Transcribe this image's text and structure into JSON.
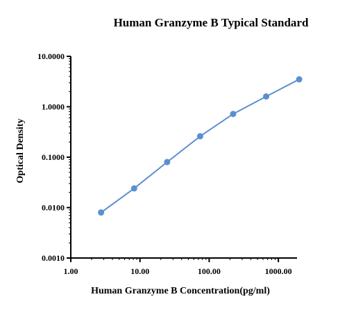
{
  "chart_data": {
    "type": "line",
    "title": "Human Granzyme B Typical Standard",
    "xlabel": "Human Granzyme B Concentration(pg/ml)",
    "ylabel": "Optical Density",
    "xscale": "log",
    "yscale": "log",
    "xlim": [
      1,
      2000
    ],
    "ylim": [
      0.001,
      10
    ],
    "x_ticks": [
      1,
      10,
      100,
      1000
    ],
    "x_tick_labels": [
      "1.00",
      "10.00",
      "100.00",
      "1000.00"
    ],
    "y_ticks": [
      0.001,
      0.01,
      0.1,
      1,
      10
    ],
    "y_tick_labels": [
      "0.0010",
      "0.0100",
      "0.1000",
      "1.0000",
      "10.0000"
    ],
    "grid": false,
    "legend": "none",
    "series": [
      {
        "color": "#5b8fcf",
        "x": [
          2.74,
          8.23,
          24.69,
          74.07,
          222.22,
          666.67,
          2000
        ],
        "y": [
          0.008,
          0.024,
          0.08,
          0.26,
          0.72,
          1.6,
          3.5
        ]
      }
    ]
  }
}
